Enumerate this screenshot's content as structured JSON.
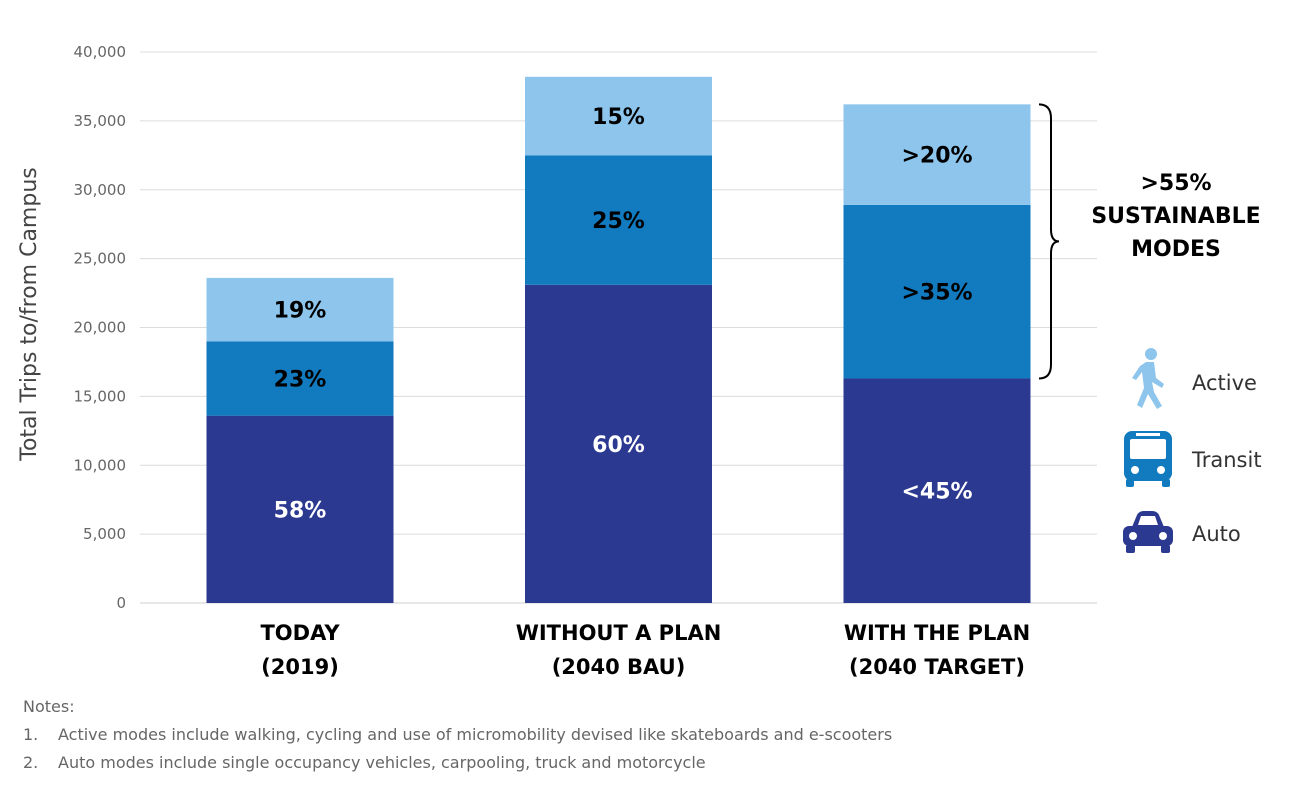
{
  "chart_data": {
    "type": "bar",
    "stacked": true,
    "ylabel": "Total Trips to/from Campus",
    "ylim": [
      0,
      40000
    ],
    "y_ticks": [
      0,
      5000,
      10000,
      15000,
      20000,
      25000,
      30000,
      35000,
      40000
    ],
    "y_tick_labels": [
      "0",
      "5,000",
      "10,000",
      "15,000",
      "20,000",
      "25,000",
      "30,000",
      "35,000",
      "40,000"
    ],
    "grid": true,
    "categories": [
      [
        "TODAY",
        "(2019)"
      ],
      [
        "WITHOUT A PLAN",
        "(2040 BAU)"
      ],
      [
        "WITH THE PLAN",
        "(2040 TARGET)"
      ]
    ],
    "series": [
      {
        "name": "Auto",
        "color": "#2B3990",
        "label_color": "#ffffff",
        "values": [
          13600,
          23100,
          16300
        ],
        "labels": [
          "58%",
          "60%",
          "<45%"
        ]
      },
      {
        "name": "Transit",
        "color": "#127ABF",
        "label_color": "#000000",
        "values": [
          5400,
          9400,
          12600
        ],
        "labels": [
          "23%",
          "25%",
          ">35%"
        ]
      },
      {
        "name": "Active",
        "color": "#8DC5EC",
        "label_color": "#000000",
        "values": [
          4600,
          5700,
          7300
        ],
        "labels": [
          "19%",
          "15%",
          ">20%"
        ]
      }
    ],
    "annotation": {
      "lines": [
        ">55%",
        "SUSTAINABLE",
        "MODES"
      ],
      "bar_index": 2,
      "from_series": 1
    },
    "legend_position": "right",
    "legend_icons": {
      "Active": "walking-person-icon",
      "Transit": "bus-icon",
      "Auto": "car-icon"
    }
  },
  "notes": {
    "heading": "Notes:",
    "items": [
      {
        "num": "1.",
        "text": "Active modes include walking, cycling and use of micromobility devised like skateboards and e-scooters"
      },
      {
        "num": "2.",
        "text": "Auto modes include single occupancy vehicles, carpooling, truck and motorcycle"
      }
    ]
  }
}
